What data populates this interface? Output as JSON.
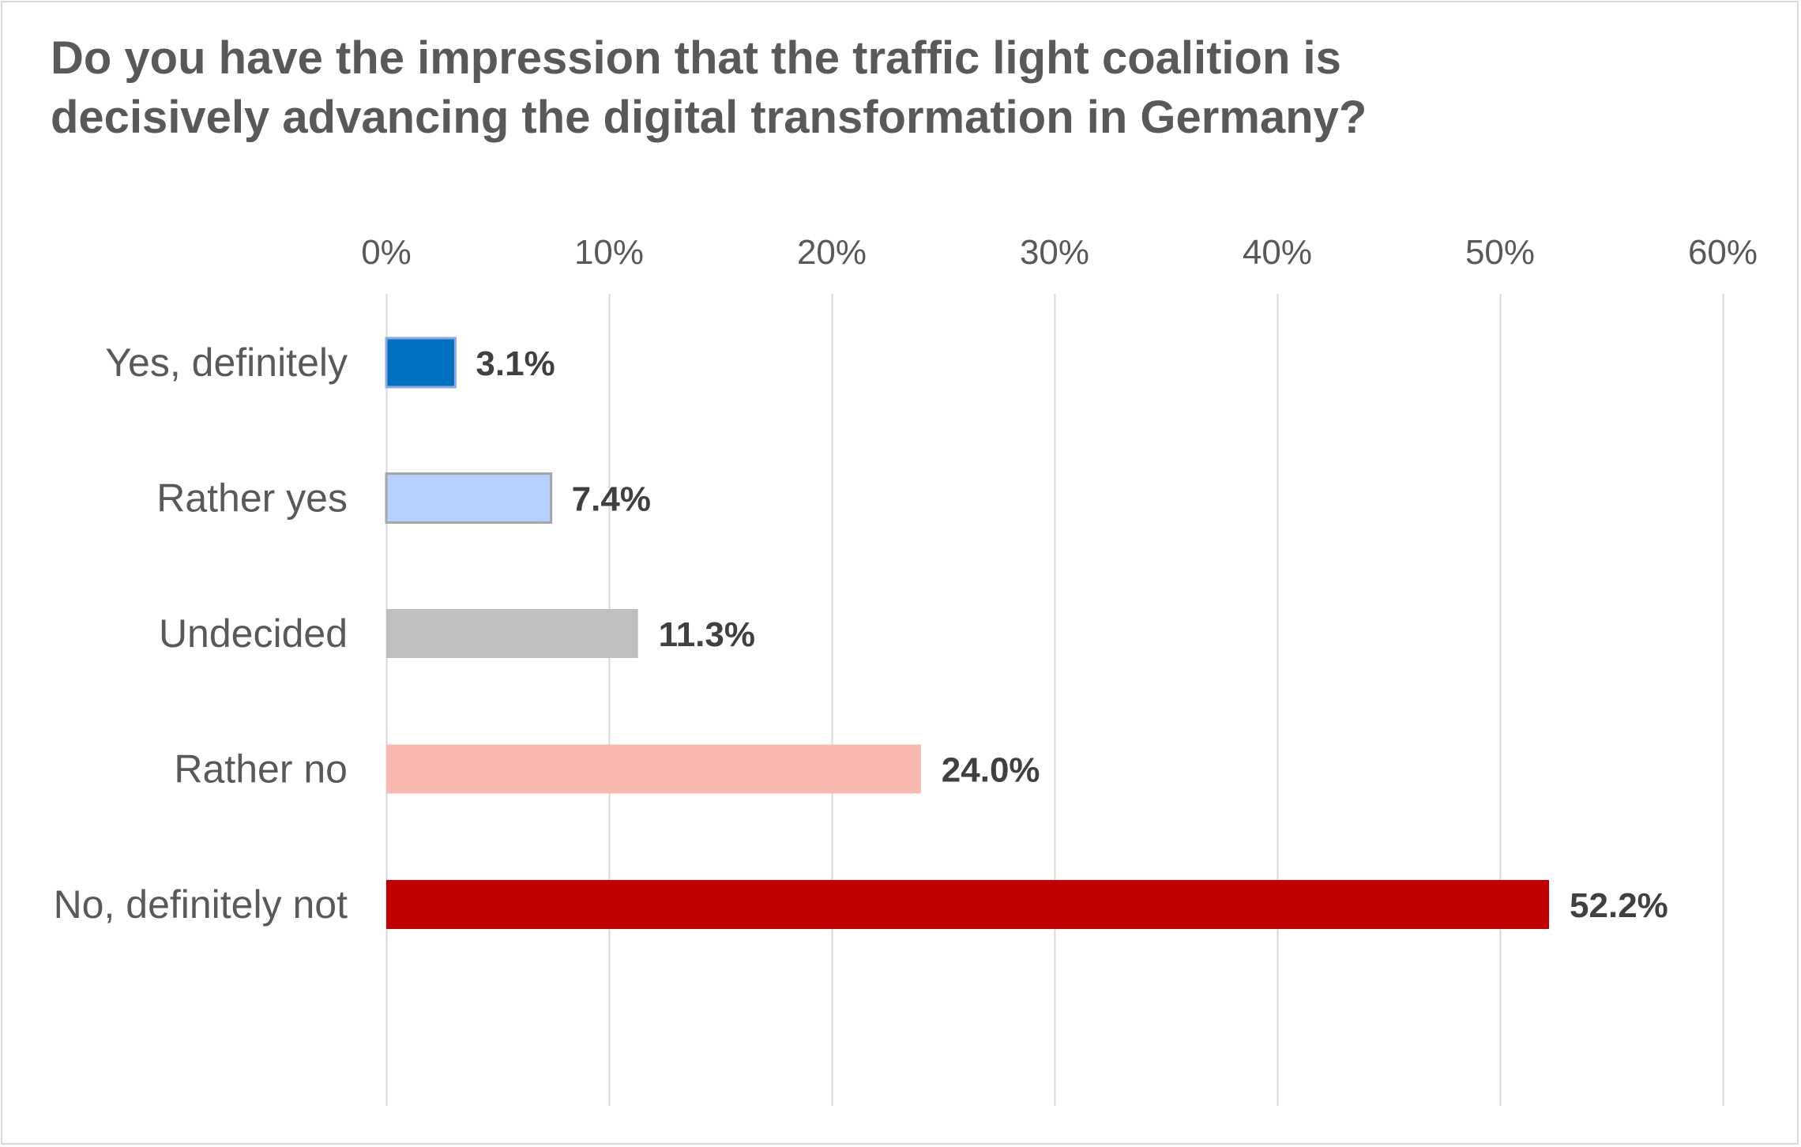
{
  "chart_data": {
    "type": "bar",
    "orientation": "horizontal",
    "title": "Do you have the impression that the traffic light coalition is decisively advancing the digital transformation in Germany?",
    "categories": [
      "Yes, definitely",
      "Rather yes",
      "Undecided",
      "Rather no",
      "No, definitely not"
    ],
    "values": [
      3.1,
      7.4,
      11.3,
      24.0,
      52.2
    ],
    "value_labels": [
      "3.1%",
      "7.4%",
      "11.3%",
      "24.0%",
      "52.2%"
    ],
    "colors": [
      "#0070c0",
      "#b4d0ff",
      "#bfbfbf",
      "#f8b8b0",
      "#c00000"
    ],
    "bar_outline": [
      "#8faadc",
      "#a6a6a6",
      null,
      null,
      null
    ],
    "xaxis": {
      "range": [
        0,
        60
      ],
      "ticks": [
        0,
        10,
        20,
        30,
        40,
        50,
        60
      ],
      "tick_labels": [
        "0%",
        "10%",
        "20%",
        "30%",
        "40%",
        "50%",
        "60%"
      ],
      "position": "top"
    },
    "xlabel": "",
    "ylabel": "",
    "grid": true,
    "grid_color": "#d9d9d9",
    "legend": "none"
  }
}
